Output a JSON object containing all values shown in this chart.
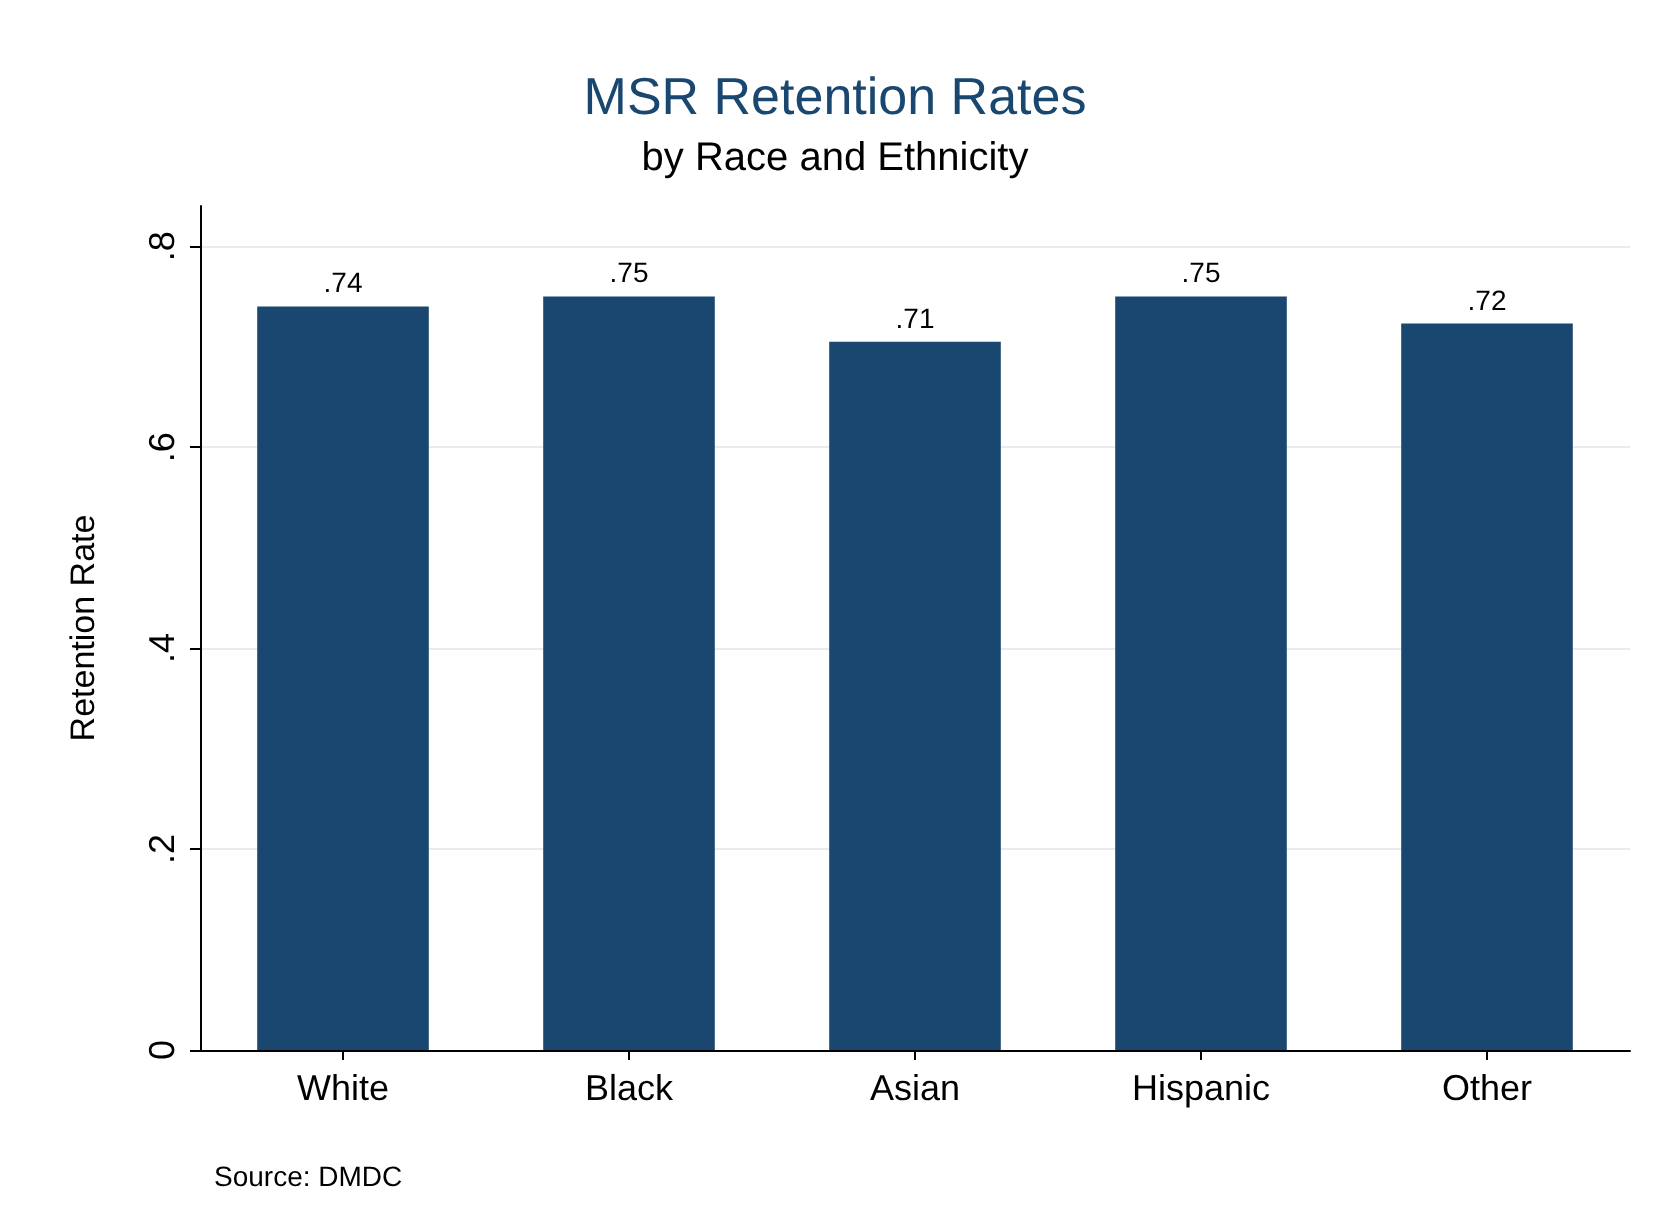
{
  "chart_data": {
    "type": "bar",
    "title": "MSR Retention Rates",
    "subtitle": "by Race and Ethnicity",
    "ylabel": "Retention Rate",
    "annotations": [
      "Source: DMDC"
    ],
    "categories": [
      "White",
      "Black",
      "Asian",
      "Hispanic",
      "Other"
    ],
    "values": [
      0.74,
      0.75,
      0.705,
      0.75,
      0.723
    ],
    "value_labels": [
      ".74",
      ".75",
      ".71",
      ".75",
      ".72"
    ],
    "color": "#1a476f",
    "ylim": [
      0,
      0.84
    ],
    "yticks": [
      {
        "value": 0,
        "label": "0"
      },
      {
        "value": 0.2,
        "label": ".2"
      },
      {
        "value": 0.4,
        "label": ".4"
      },
      {
        "value": 0.6,
        "label": ".6"
      },
      {
        "value": 0.8,
        "label": ".8"
      }
    ],
    "grid": "y"
  }
}
